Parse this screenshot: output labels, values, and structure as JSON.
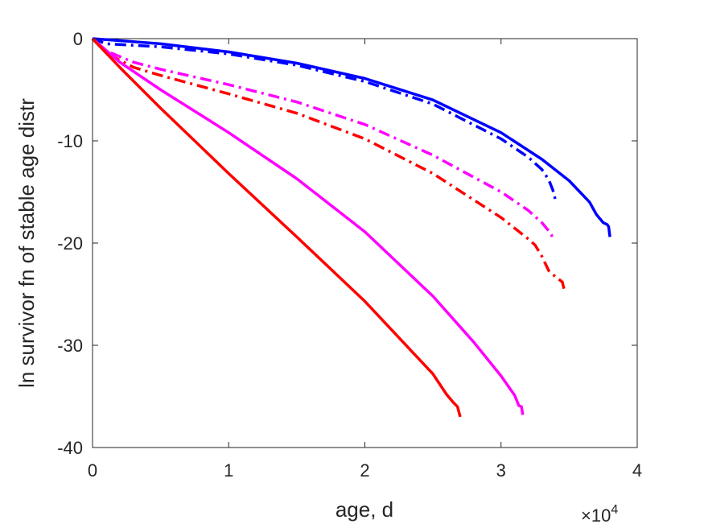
{
  "chart_data": {
    "type": "line",
    "title": "",
    "xlabel": "age, d",
    "ylabel": "ln survivor fn of stable age distr",
    "x_multiplier_label": "×10",
    "x_multiplier_exponent": "4",
    "xlim": [
      0,
      40000
    ],
    "ylim": [
      -40,
      0
    ],
    "xticks": [
      0,
      10000,
      20000,
      30000,
      40000
    ],
    "xtick_labels": [
      "0",
      "1",
      "2",
      "3",
      "4"
    ],
    "yticks": [
      0,
      -10,
      -20,
      -30,
      -40
    ],
    "ytick_labels": [
      "0",
      "-10",
      "-20",
      "-30",
      "-40"
    ],
    "grid": false,
    "legend": "none",
    "series": [
      {
        "color": "#0000ff",
        "style": "solid",
        "x": [
          0,
          2000,
          5000,
          10000,
          15000,
          20000,
          25000,
          30000,
          33000,
          35000,
          36500,
          37000,
          37500,
          37800,
          37900,
          38000
        ],
        "y": [
          0,
          -0.2,
          -0.5,
          -1.3,
          -2.4,
          -3.9,
          -6.0,
          -9.2,
          -11.8,
          -13.9,
          -16.0,
          -17.2,
          -18.0,
          -18.2,
          -18.4,
          -19.4
        ]
      },
      {
        "color": "#0000ff",
        "style": "dashdot",
        "x": [
          0,
          1000,
          5000,
          10000,
          15000,
          20000,
          25000,
          30000,
          32000,
          33000,
          33500,
          33800,
          34000
        ],
        "y": [
          0,
          -0.5,
          -0.8,
          -1.5,
          -2.6,
          -4.2,
          -6.4,
          -9.8,
          -11.6,
          -12.8,
          -13.8,
          -14.8,
          -15.8
        ]
      },
      {
        "color": "#ff00ff",
        "style": "dashdot",
        "x": [
          0,
          1000,
          3000,
          5000,
          10000,
          15000,
          20000,
          25000,
          30000,
          32000,
          33000,
          33500,
          33700,
          33800
        ],
        "y": [
          0,
          -1.2,
          -2.3,
          -3.0,
          -4.5,
          -6.2,
          -8.4,
          -11.4,
          -15.0,
          -16.8,
          -18.0,
          -18.8,
          -19.2,
          -19.8
        ]
      },
      {
        "color": "#ff0000",
        "style": "dashdot",
        "x": [
          0,
          1000,
          3000,
          5000,
          10000,
          15000,
          20000,
          25000,
          30000,
          32000,
          32500,
          33000,
          33500,
          34000,
          34500,
          34700
        ],
        "y": [
          0,
          -1.4,
          -2.8,
          -3.6,
          -5.4,
          -7.3,
          -9.8,
          -13.2,
          -17.5,
          -19.6,
          -20.2,
          -21.3,
          -22.7,
          -23.3,
          -23.8,
          -24.9
        ]
      },
      {
        "color": "#ff00ff",
        "style": "solid",
        "x": [
          0,
          2000,
          5000,
          10000,
          15000,
          20000,
          25000,
          28000,
          30000,
          31000,
          31300,
          31500,
          31600
        ],
        "y": [
          0,
          -2.3,
          -5.0,
          -9.2,
          -13.7,
          -18.9,
          -25.2,
          -29.7,
          -33.0,
          -34.9,
          -35.9,
          -36.0,
          -36.8
        ]
      },
      {
        "color": "#ff0000",
        "style": "solid",
        "x": [
          0,
          2000,
          5000,
          10000,
          15000,
          20000,
          25000,
          26000,
          26500,
          26800,
          27000
        ],
        "y": [
          0,
          -2.8,
          -6.8,
          -13.2,
          -19.4,
          -25.7,
          -32.8,
          -34.8,
          -35.6,
          -36.0,
          -37.0
        ]
      }
    ]
  }
}
